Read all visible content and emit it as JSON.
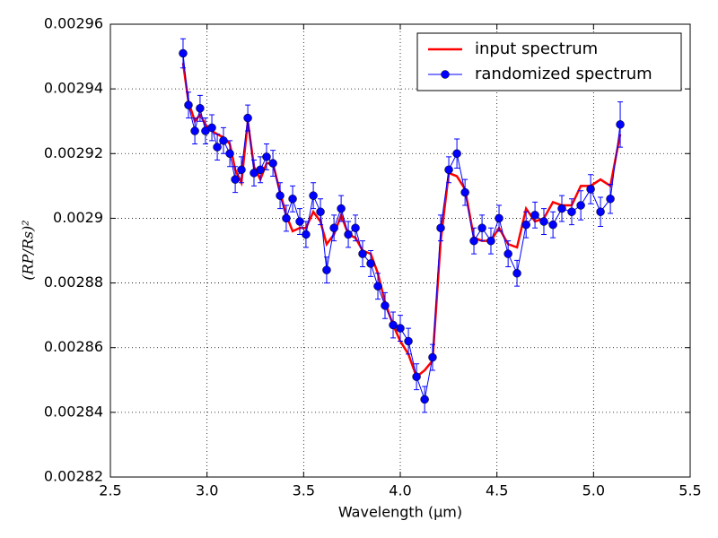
{
  "chart_data": {
    "type": "line",
    "xlabel": "Wavelength (μm)",
    "ylabel": "(RP/Rs)²",
    "x": [
      2.876,
      2.904,
      2.937,
      2.964,
      2.992,
      3.025,
      3.053,
      3.085,
      3.118,
      3.146,
      3.178,
      3.211,
      3.243,
      3.276,
      3.308,
      3.341,
      3.378,
      3.41,
      3.443,
      3.48,
      3.512,
      3.55,
      3.587,
      3.619,
      3.657,
      3.694,
      3.731,
      3.768,
      3.805,
      3.847,
      3.884,
      3.921,
      3.963,
      4.0,
      4.042,
      4.084,
      4.126,
      4.167,
      4.209,
      4.251,
      4.293,
      4.335,
      4.381,
      4.423,
      4.469,
      4.511,
      4.558,
      4.604,
      4.651,
      4.697,
      4.743,
      4.79,
      4.836,
      4.887,
      4.934,
      4.985,
      5.036,
      5.087,
      5.138
    ],
    "series": [
      {
        "name": "input spectrum",
        "color": "#ff0000",
        "values": [
          0.002948,
          0.002936,
          0.00293,
          0.002932,
          0.002929,
          0.002927,
          0.002926,
          0.002925,
          0.002923,
          0.002915,
          0.002911,
          0.00293,
          0.002916,
          0.002912,
          0.002917,
          0.002917,
          0.002908,
          0.002901,
          0.002896,
          0.002897,
          0.002897,
          0.002902,
          0.002899,
          0.002892,
          0.002895,
          0.002901,
          0.002895,
          0.002894,
          0.00289,
          0.002889,
          0.002883,
          0.002874,
          0.002867,
          0.002862,
          0.002858,
          0.002851,
          0.002853,
          0.002856,
          0.002893,
          0.002914,
          0.002913,
          0.002909,
          0.002894,
          0.002893,
          0.002893,
          0.002897,
          0.002892,
          0.002891,
          0.002903,
          0.002899,
          0.0029,
          0.002905,
          0.002904,
          0.002904,
          0.00291,
          0.00291,
          0.002912,
          0.00291,
          0.002926
        ]
      },
      {
        "name": "randomized spectrum",
        "color": "#0000ff",
        "values": [
          0.002951,
          0.002935,
          0.002927,
          0.002934,
          0.002927,
          0.002928,
          0.002922,
          0.002924,
          0.00292,
          0.002912,
          0.002915,
          0.002931,
          0.002914,
          0.002915,
          0.002919,
          0.002917,
          0.002907,
          0.0029,
          0.002906,
          0.002899,
          0.002895,
          0.002907,
          0.002902,
          0.002884,
          0.002897,
          0.002903,
          0.002895,
          0.002897,
          0.002889,
          0.002886,
          0.002879,
          0.002873,
          0.002867,
          0.002866,
          0.002862,
          0.002851,
          0.002844,
          0.002857,
          0.002897,
          0.002915,
          0.00292,
          0.002908,
          0.002893,
          0.002897,
          0.002893,
          0.0029,
          0.002889,
          0.002883,
          0.002898,
          0.002901,
          0.002899,
          0.002898,
          0.002903,
          0.002902,
          0.002904,
          0.002909,
          0.002902,
          0.002906,
          0.002929
        ],
        "errors": [
          4.5e-06,
          4e-06,
          4e-06,
          4e-06,
          4e-06,
          4e-06,
          4e-06,
          4e-06,
          4e-06,
          4e-06,
          4e-06,
          4e-06,
          4e-06,
          4e-06,
          4e-06,
          4e-06,
          4e-06,
          4e-06,
          4e-06,
          4e-06,
          4e-06,
          4e-06,
          4e-06,
          4e-06,
          4e-06,
          4e-06,
          4e-06,
          4e-06,
          4e-06,
          4e-06,
          4e-06,
          4e-06,
          4e-06,
          4e-06,
          4e-06,
          4e-06,
          4e-06,
          4e-06,
          4e-06,
          4e-06,
          4.5e-06,
          4e-06,
          4e-06,
          4e-06,
          4e-06,
          4e-06,
          4e-06,
          4e-06,
          4e-06,
          4e-06,
          4e-06,
          4e-06,
          4e-06,
          4e-06,
          4.5e-06,
          4.5e-06,
          4.5e-06,
          4.5e-06,
          7e-06
        ]
      }
    ],
    "xlim": [
      2.5,
      5.5
    ],
    "xticks": [
      2.5,
      {
        "value": 3.0,
        "label": "3.0"
      },
      3.5,
      {
        "value": 4.0,
        "label": "4.0"
      },
      4.5,
      {
        "value": 5.0,
        "label": "5.0"
      },
      5.5
    ],
    "ylim": [
      0.00282,
      0.00296
    ],
    "yticks": [
      0.00282,
      0.00284,
      0.00286,
      0.00288,
      0.0029,
      0.00292,
      0.00294,
      0.00296
    ],
    "grid": true,
    "legend": "upper right"
  }
}
